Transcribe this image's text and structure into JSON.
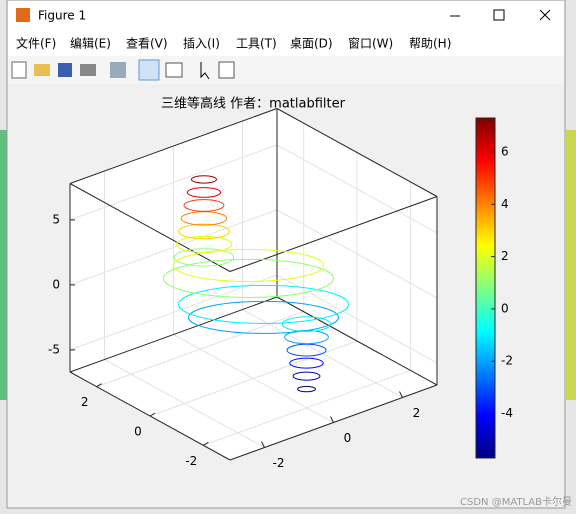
{
  "window": {
    "title": "Figure 1"
  },
  "menu": [
    "文件(F)",
    "编辑(E)",
    "查看(V)",
    "插入(I)",
    "工具(T)",
    "桌面(D)",
    "窗口(W)",
    "帮助(H)"
  ],
  "watermark": "CSDN @MATLAB卡尔曼",
  "chart_data": {
    "type": "contour3",
    "title": "三维等高线 作者：matlabfilter",
    "xlim": [
      -3,
      3
    ],
    "ylim": [
      -3,
      3
    ],
    "zlim": [
      -6.7,
      7.8
    ],
    "xticks": [
      -2,
      0,
      2
    ],
    "yticks": [
      -2,
      0,
      2
    ],
    "zticks": [
      -5,
      0,
      5
    ],
    "levels": [
      -6,
      -5,
      -4,
      -3,
      -2,
      -1,
      1,
      2,
      3,
      4,
      5,
      6,
      7
    ],
    "clim": [
      -5.7,
      7.3
    ],
    "cticks": [
      -4,
      -2,
      0,
      2,
      4,
      6
    ],
    "colormap": "jet",
    "grid": true
  }
}
